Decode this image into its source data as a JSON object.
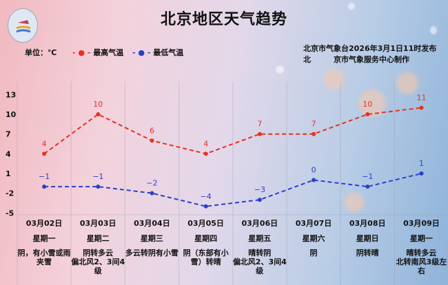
{
  "header": {
    "title": "北京地区天气趋势",
    "unit": "单位：℃",
    "publish_line1": "北京市气象台2026年3月1日11时发布",
    "publish_line2": "北　　　京市气象服务中心制作"
  },
  "chart_data": {
    "type": "line",
    "title": "北京地区天气趋势",
    "ylabel": "单位：℃",
    "yticks": [
      13,
      10,
      7,
      4,
      1,
      -2,
      -5
    ],
    "ylim": [
      -5,
      13
    ],
    "grid": true,
    "legend_position": "top-left",
    "categories": [
      "03月02日",
      "03月03日",
      "03月04日",
      "03月05日",
      "03月06日",
      "03月07日",
      "03月08日",
      "03月09日"
    ],
    "weekdays": [
      "星期一",
      "星期二",
      "星期三",
      "星期四",
      "星期五",
      "星期六",
      "星期日",
      "星期一"
    ],
    "weather": [
      "阴，有小雪或雨夹雪",
      "阴转多云\n偏北风2、3间4级",
      "多云转阴有小雪",
      "阴（东部有小雪）转晴",
      "晴转阴\n偏北风2、3间4级",
      "阴",
      "阴转晴",
      "晴转多云\n北转南风3级左右"
    ],
    "series": [
      {
        "name": "最高气温",
        "color": "#e8301e",
        "values": [
          4,
          10,
          6,
          4,
          7,
          7,
          10,
          11
        ]
      },
      {
        "name": "最低气温",
        "color": "#2a3fc8",
        "values": [
          -1,
          -1,
          -2,
          -4,
          -3,
          0,
          -1,
          1
        ]
      }
    ]
  }
}
